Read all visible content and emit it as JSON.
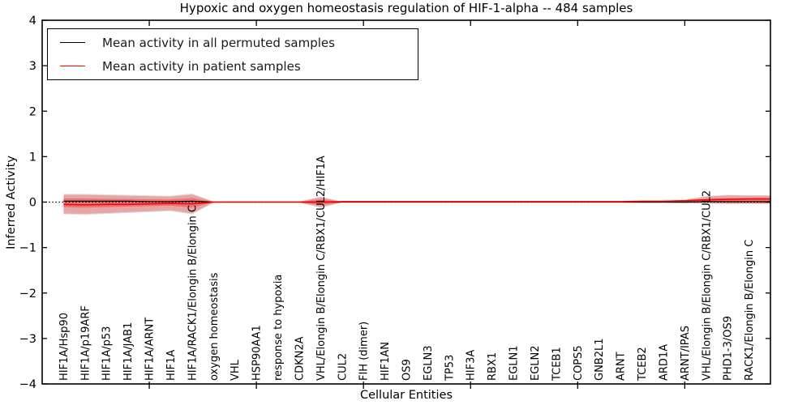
{
  "chart_data": {
    "type": "line",
    "title": "Hypoxic and oxygen homeostasis regulation of HIF-1-alpha -- 484 samples",
    "xlabel": "Cellular Entities",
    "ylabel": "Inferred Activity",
    "ylim": [
      -4,
      4
    ],
    "yticks": [
      4,
      3,
      2,
      1,
      0,
      -1,
      -2,
      -3,
      -4
    ],
    "xticks_numeric": [
      5,
      10,
      15,
      20,
      25,
      30
    ],
    "grid": "off",
    "zero_line": {
      "y": 0,
      "style": "dotted",
      "color": "#000000"
    },
    "legend": {
      "position": "upper left",
      "entries": [
        {
          "label": "Mean activity in all permuted samples",
          "color": "#000000"
        },
        {
          "label": "Mean activity in patient samples",
          "color": "#ff0000"
        }
      ]
    },
    "categories": [
      "HIF1A/Hsp90",
      "HIF1A/p19ARF",
      "HIF1A/p53",
      "HIF1A/JAB1",
      "HIF1A/ARNT",
      "HIF1A",
      "HIF1A/RACK1/Elongin B/Elongin C",
      "oxygen homeostasis",
      "VHL",
      "HSP90AA1",
      "response to hypoxia",
      "CDKN2A",
      "VHL/Elongin B/Elongin C/RBX1/CUL2/HIF1A",
      "CUL2",
      "FIH (dimer)",
      "HIF1AN",
      "OS9",
      "EGLN3",
      "TP53",
      "HIF3A",
      "RBX1",
      "EGLN1",
      "EGLN2",
      "TCEB1",
      "COPS5",
      "GNB2L1",
      "ARNT",
      "TCEB2",
      "ARD1A",
      "ARNT/IPAS",
      "VHL/Elongin B/Elongin C/RBX1/CUL2",
      "PHD1-3/OS9",
      "RACK1/Elongin B/Elongin C"
    ],
    "series": [
      {
        "name": "Mean activity in all permuted samples",
        "color": "#000000",
        "values": [
          0.02,
          0.02,
          0.02,
          0.02,
          0.01,
          0.01,
          0.02,
          0,
          0,
          0,
          0,
          0,
          0,
          0,
          0,
          0,
          0,
          0,
          0,
          0,
          0,
          0,
          0,
          0,
          0,
          0,
          0,
          0,
          0,
          0,
          0.01,
          0.01,
          0.01
        ]
      },
      {
        "name": "Mean activity in patient samples",
        "color": "#ff0000",
        "values": [
          -0.05,
          -0.06,
          -0.05,
          -0.05,
          -0.04,
          -0.03,
          -0.04,
          0,
          0,
          0,
          0,
          0,
          0,
          0.01,
          0.01,
          0.01,
          0.01,
          0.01,
          0.01,
          0.01,
          0.01,
          0.01,
          0.01,
          0.01,
          0.01,
          0.01,
          0.01,
          0.02,
          0.02,
          0.03,
          0.05,
          0.06,
          0.07
        ]
      }
    ],
    "bands": [
      {
        "name": "permuted-samples-spread",
        "color": "#000000",
        "alpha": 0.13,
        "upper": [
          0.18,
          0.18,
          0.17,
          0.16,
          0.15,
          0.14,
          0.19,
          0.01,
          0.005,
          0.005,
          0.005,
          0.01,
          0.12,
          0.01,
          0.01,
          0.01,
          0.01,
          0.01,
          0.01,
          0.01,
          0.01,
          0.01,
          0.01,
          0.01,
          0.01,
          0.01,
          0.01,
          0.02,
          0.03,
          0.05,
          0.13,
          0.16,
          0.15
        ],
        "lower": [
          -0.27,
          -0.28,
          -0.26,
          -0.24,
          -0.22,
          -0.2,
          -0.27,
          -0.01,
          -0.005,
          -0.005,
          -0.005,
          -0.01,
          -0.12,
          -0.01,
          -0.01,
          -0.01,
          -0.01,
          -0.01,
          -0.01,
          -0.01,
          -0.01,
          -0.01,
          -0.01,
          -0.01,
          -0.01,
          -0.01,
          -0.01,
          -0.02,
          -0.02,
          -0.03,
          -0.04,
          -0.04,
          -0.04
        ]
      },
      {
        "name": "patient-samples-outer-spread",
        "color": "#ff0000",
        "alpha": 0.25,
        "upper": [
          0.16,
          0.16,
          0.15,
          0.14,
          0.13,
          0.12,
          0.17,
          0.01,
          0.005,
          0.005,
          0.005,
          0.01,
          0.11,
          0.01,
          0.01,
          0.01,
          0.01,
          0.01,
          0.01,
          0.01,
          0.01,
          0.01,
          0.01,
          0.01,
          0.01,
          0.01,
          0.01,
          0.02,
          0.03,
          0.05,
          0.12,
          0.15,
          0.14
        ],
        "lower": [
          -0.25,
          -0.26,
          -0.24,
          -0.22,
          -0.2,
          -0.18,
          -0.25,
          -0.01,
          -0.005,
          -0.005,
          -0.005,
          -0.01,
          -0.11,
          -0.01,
          -0.01,
          -0.01,
          -0.01,
          -0.01,
          -0.01,
          -0.01,
          -0.01,
          -0.01,
          -0.01,
          -0.01,
          -0.01,
          -0.01,
          -0.01,
          -0.01,
          -0.01,
          -0.02,
          -0.02,
          -0.03,
          -0.03
        ]
      },
      {
        "name": "patient-samples-inner-spread",
        "color": "#ff0000",
        "alpha": 0.3,
        "upper": [
          0.08,
          0.08,
          0.07,
          0.07,
          0.06,
          0.06,
          0.09,
          0.005,
          0.002,
          0.002,
          0.002,
          0.005,
          0.06,
          0.005,
          0.005,
          0.005,
          0.005,
          0.005,
          0.005,
          0.005,
          0.005,
          0.005,
          0.005,
          0.005,
          0.005,
          0.005,
          0.005,
          0.01,
          0.02,
          0.03,
          0.07,
          0.09,
          0.08
        ],
        "lower": [
          -0.11,
          -0.12,
          -0.11,
          -0.1,
          -0.09,
          -0.08,
          -0.12,
          -0.005,
          -0.002,
          -0.002,
          -0.002,
          -0.005,
          -0.06,
          -0.005,
          -0.005,
          -0.005,
          -0.005,
          -0.005,
          -0.005,
          -0.005,
          -0.005,
          -0.005,
          -0.005,
          -0.005,
          -0.005,
          -0.005,
          -0.005,
          -0.005,
          -0.01,
          -0.01,
          -0.01,
          -0.02,
          -0.02
        ]
      }
    ]
  }
}
